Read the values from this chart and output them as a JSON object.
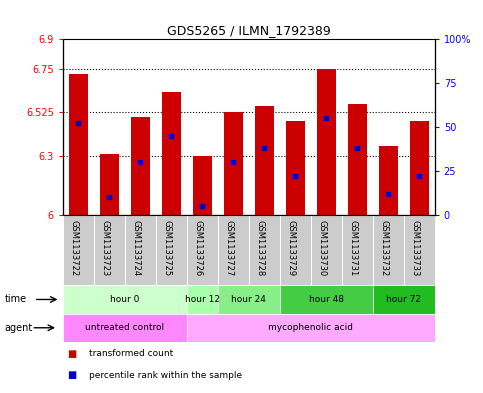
{
  "title": "GDS5265 / ILMN_1792389",
  "samples": [
    "GSM1133722",
    "GSM1133723",
    "GSM1133724",
    "GSM1133725",
    "GSM1133726",
    "GSM1133727",
    "GSM1133728",
    "GSM1133729",
    "GSM1133730",
    "GSM1133731",
    "GSM1133732",
    "GSM1133733"
  ],
  "bar_values": [
    6.72,
    6.31,
    6.5,
    6.63,
    6.3,
    6.525,
    6.56,
    6.48,
    6.75,
    6.57,
    6.35,
    6.48
  ],
  "bar_base": 6.0,
  "blue_pct": [
    52,
    10,
    30,
    45,
    5,
    30,
    38,
    22,
    55,
    38,
    12,
    22
  ],
  "ylim_left": [
    6.0,
    6.9
  ],
  "ylim_right": [
    0,
    100
  ],
  "yticks_left": [
    6.0,
    6.3,
    6.525,
    6.75,
    6.9
  ],
  "ytick_labels_left": [
    "6",
    "6.3",
    "6.525",
    "6.75",
    "6.9"
  ],
  "yticks_right": [
    0,
    25,
    50,
    75,
    100
  ],
  "ytick_labels_right": [
    "0",
    "25",
    "50",
    "75",
    "100%"
  ],
  "hlines": [
    6.3,
    6.525,
    6.75
  ],
  "bar_color": "#cc0000",
  "blue_color": "#0000cc",
  "bar_width": 0.6,
  "time_groups": [
    {
      "label": "hour 0",
      "start": 0,
      "end": 3,
      "color": "#ccffcc"
    },
    {
      "label": "hour 12",
      "start": 4,
      "end": 4,
      "color": "#aaffaa"
    },
    {
      "label": "hour 24",
      "start": 5,
      "end": 6,
      "color": "#88ee88"
    },
    {
      "label": "hour 48",
      "start": 7,
      "end": 9,
      "color": "#44cc44"
    },
    {
      "label": "hour 72",
      "start": 10,
      "end": 11,
      "color": "#22bb22"
    }
  ],
  "agent_groups": [
    {
      "label": "untreated control",
      "start": 0,
      "end": 3,
      "color": "#ff88ff"
    },
    {
      "label": "mycophenolic acid",
      "start": 4,
      "end": 11,
      "color": "#ffaaff"
    }
  ],
  "sample_bg": "#cccccc",
  "plot_bg": "#ffffff",
  "fig_bg": "#ffffff",
  "legend_items": [
    {
      "color": "#cc0000",
      "label": "transformed count"
    },
    {
      "color": "#0000cc",
      "label": "percentile rank within the sample"
    }
  ],
  "title_fontsize": 9,
  "tick_fontsize": 7,
  "label_fontsize": 7,
  "sample_fontsize": 6
}
